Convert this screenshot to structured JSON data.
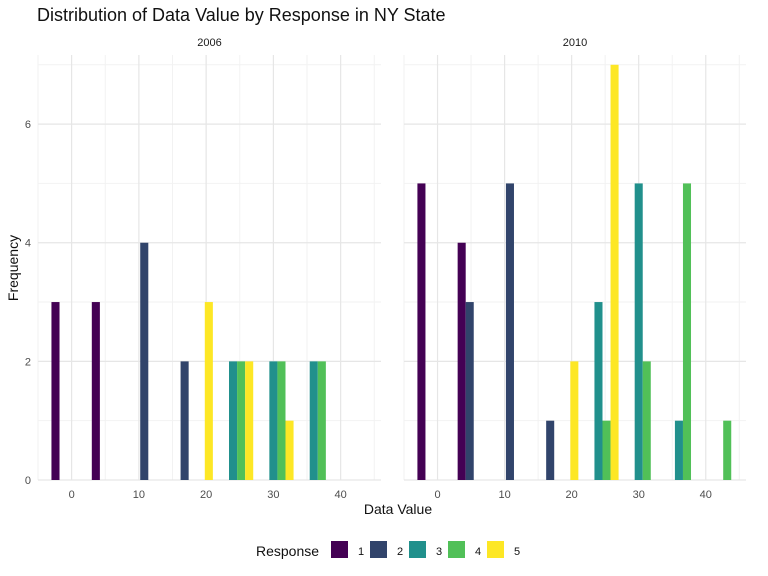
{
  "chart_data": {
    "type": "bar",
    "title": "Distribution of Data Value by Response in NY State",
    "xlabel": "Data Value",
    "ylabel": "Frequency",
    "xlim": [
      -5,
      46
    ],
    "ylim": [
      0,
      7.3
    ],
    "x_ticks": [
      0,
      10,
      20,
      30,
      40
    ],
    "y_ticks": [
      0,
      2,
      4,
      6
    ],
    "grid": true,
    "legend": {
      "title": "Response",
      "position": "bottom",
      "entries": [
        "1",
        "2",
        "3",
        "4",
        "5"
      ]
    },
    "colors": {
      "1": "#440154",
      "2": "#31446B",
      "3": "#21908C",
      "4": "#51C058",
      "5": "#FDE725"
    },
    "bin_width": 6,
    "dodge_count": 5,
    "panels": [
      {
        "label": "2006",
        "bars": [
          {
            "bin_center": 0,
            "response": "1",
            "count": 3
          },
          {
            "bin_center": 6,
            "response": "1",
            "count": 3
          },
          {
            "bin_center": 12,
            "response": "2",
            "count": 4
          },
          {
            "bin_center": 18,
            "response": "2",
            "count": 2
          },
          {
            "bin_center": 18,
            "response": "5",
            "count": 3
          },
          {
            "bin_center": 24,
            "response": "3",
            "count": 2
          },
          {
            "bin_center": 24,
            "response": "4",
            "count": 2
          },
          {
            "bin_center": 24,
            "response": "5",
            "count": 2
          },
          {
            "bin_center": 30,
            "response": "3",
            "count": 2
          },
          {
            "bin_center": 30,
            "response": "4",
            "count": 2
          },
          {
            "bin_center": 30,
            "response": "5",
            "count": 1
          },
          {
            "bin_center": 36,
            "response": "3",
            "count": 2
          },
          {
            "bin_center": 36,
            "response": "4",
            "count": 2
          }
        ]
      },
      {
        "label": "2010",
        "bars": [
          {
            "bin_center": 0,
            "response": "1",
            "count": 5
          },
          {
            "bin_center": 6,
            "response": "1",
            "count": 4
          },
          {
            "bin_center": 6,
            "response": "2",
            "count": 3
          },
          {
            "bin_center": 12,
            "response": "2",
            "count": 5
          },
          {
            "bin_center": 18,
            "response": "2",
            "count": 1
          },
          {
            "bin_center": 18,
            "response": "5",
            "count": 2
          },
          {
            "bin_center": 24,
            "response": "3",
            "count": 3
          },
          {
            "bin_center": 24,
            "response": "4",
            "count": 1
          },
          {
            "bin_center": 24,
            "response": "5",
            "count": 7
          },
          {
            "bin_center": 30,
            "response": "3",
            "count": 5
          },
          {
            "bin_center": 30,
            "response": "4",
            "count": 2
          },
          {
            "bin_center": 36,
            "response": "3",
            "count": 1
          },
          {
            "bin_center": 36,
            "response": "4",
            "count": 5
          },
          {
            "bin_center": 42,
            "response": "4",
            "count": 1
          }
        ]
      }
    ]
  }
}
